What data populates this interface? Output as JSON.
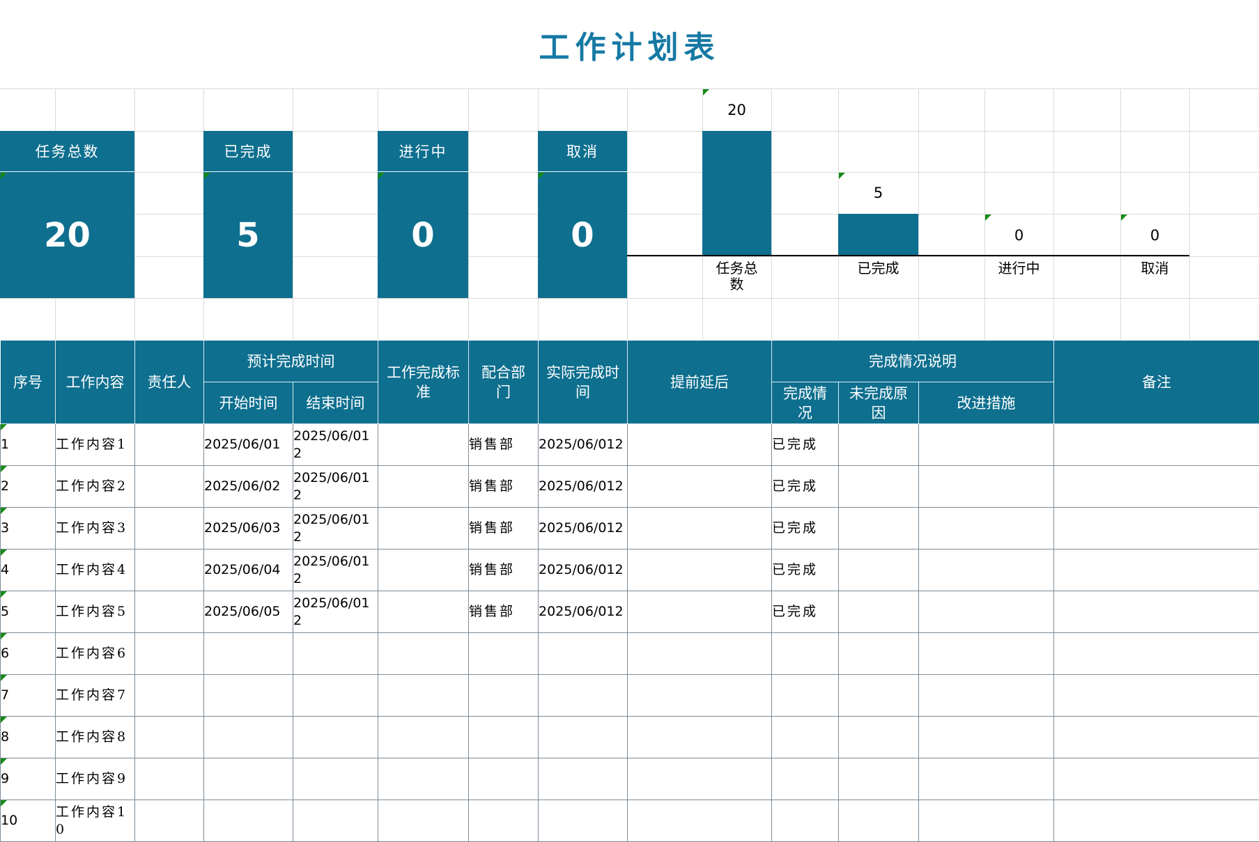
{
  "title": "工作计划表",
  "kpis": [
    {
      "label": "任务总数",
      "value": "20"
    },
    {
      "label": "已完成",
      "value": "5"
    },
    {
      "label": "进行中",
      "value": "0"
    },
    {
      "label": "取消",
      "value": "0"
    }
  ],
  "chart_data": {
    "type": "bar",
    "categories": [
      "任务总数",
      "已完成",
      "进行中",
      "取消"
    ],
    "values": [
      20,
      5,
      0,
      0
    ],
    "data_labels": [
      "20",
      "5",
      "0",
      "0"
    ],
    "ylim": [
      0,
      20
    ],
    "legend": "none",
    "gridlines": true,
    "bar_color": "#0e6f8f",
    "axis_color": "#000000"
  },
  "table": {
    "headers": {
      "index": "序号",
      "content": "工作内容",
      "owner": "责任人",
      "planned_time": "预计完成时间",
      "start": "开始时间",
      "end": "结束时间",
      "standard": "工作完成标准",
      "dept": "配合部门",
      "actual": "实际完成时间",
      "ahead_behind": "提前延后",
      "status_note": "完成情况说明",
      "status": "完成情况",
      "reason": "未完成原因",
      "improve": "改进措施",
      "remark": "备注"
    },
    "rows": [
      [
        "1",
        "工作内容1",
        "",
        "2025/06/01",
        "2025/06/012",
        "",
        "销售部",
        "2025/06/012",
        "",
        "已完成",
        "",
        "",
        ""
      ],
      [
        "2",
        "工作内容2",
        "",
        "2025/06/02",
        "2025/06/012",
        "",
        "销售部",
        "2025/06/012",
        "",
        "已完成",
        "",
        "",
        ""
      ],
      [
        "3",
        "工作内容3",
        "",
        "2025/06/03",
        "2025/06/012",
        "",
        "销售部",
        "2025/06/012",
        "",
        "已完成",
        "",
        "",
        ""
      ],
      [
        "4",
        "工作内容4",
        "",
        "2025/06/04",
        "2025/06/012",
        "",
        "销售部",
        "2025/06/012",
        "",
        "已完成",
        "",
        "",
        ""
      ],
      [
        "5",
        "工作内容5",
        "",
        "2025/06/05",
        "2025/06/012",
        "",
        "销售部",
        "2025/06/012",
        "",
        "已完成",
        "",
        "",
        ""
      ],
      [
        "6",
        "工作内容6",
        "",
        "",
        "",
        "",
        "",
        "",
        "",
        "",
        "",
        "",
        ""
      ],
      [
        "7",
        "工作内容7",
        "",
        "",
        "",
        "",
        "",
        "",
        "",
        "",
        "",
        "",
        ""
      ],
      [
        "8",
        "工作内容8",
        "",
        "",
        "",
        "",
        "",
        "",
        "",
        "",
        "",
        "",
        ""
      ],
      [
        "9",
        "工作内容9",
        "",
        "",
        "",
        "",
        "",
        "",
        "",
        "",
        "",
        "",
        ""
      ],
      [
        "10",
        "工作内容10",
        "",
        "",
        "",
        "",
        "",
        "",
        "",
        "",
        "",
        "",
        ""
      ]
    ]
  },
  "colors": {
    "teal": "#0e6f8f",
    "title_text": "#1679a4",
    "grid_line": "#d9d9d9",
    "cell_border": "#7b8b97",
    "axis": "#000000",
    "marker_green": "#178a17",
    "header_text": "#ffffff",
    "body_text": "#000000"
  }
}
